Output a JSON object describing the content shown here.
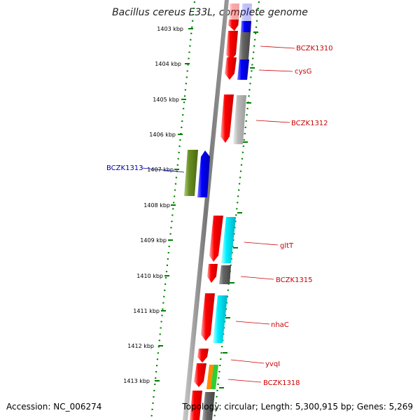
{
  "title": "Bacillus cereus E33L, complete genome",
  "accession": "Accession: NC_006274",
  "summary": "Topology: circular; Length: 5,300,915 bp; Genes: 5,269",
  "kbp_labels": [
    "1403 kbp",
    "1404 kbp",
    "1405 kbp",
    "1406 kbp",
    "1407 kbp",
    "1408 kbp",
    "1409 kbp",
    "1410 kbp",
    "1411 kbp",
    "1412 kbp",
    "1413 kbp"
  ],
  "gene_labels_right": [
    "BCZK1310",
    "cysG",
    "BCZK1312",
    "gltT",
    "BCZK1315",
    "nhaC",
    "yvqI",
    "BCZK1318"
  ],
  "gene_labels_left": [
    "BCZK1313"
  ],
  "colors": {
    "red": "#ff0000",
    "blue": "#0000ff",
    "gray": "#666666",
    "lightgray": "#bbbbbb",
    "cyan": "#00e5ee",
    "green": "#6b8e23",
    "orange": "#ff8c00",
    "lime": "#32cd32",
    "tick": "#008000",
    "label_red": "#cc0000",
    "label_blue": "#0000aa"
  }
}
